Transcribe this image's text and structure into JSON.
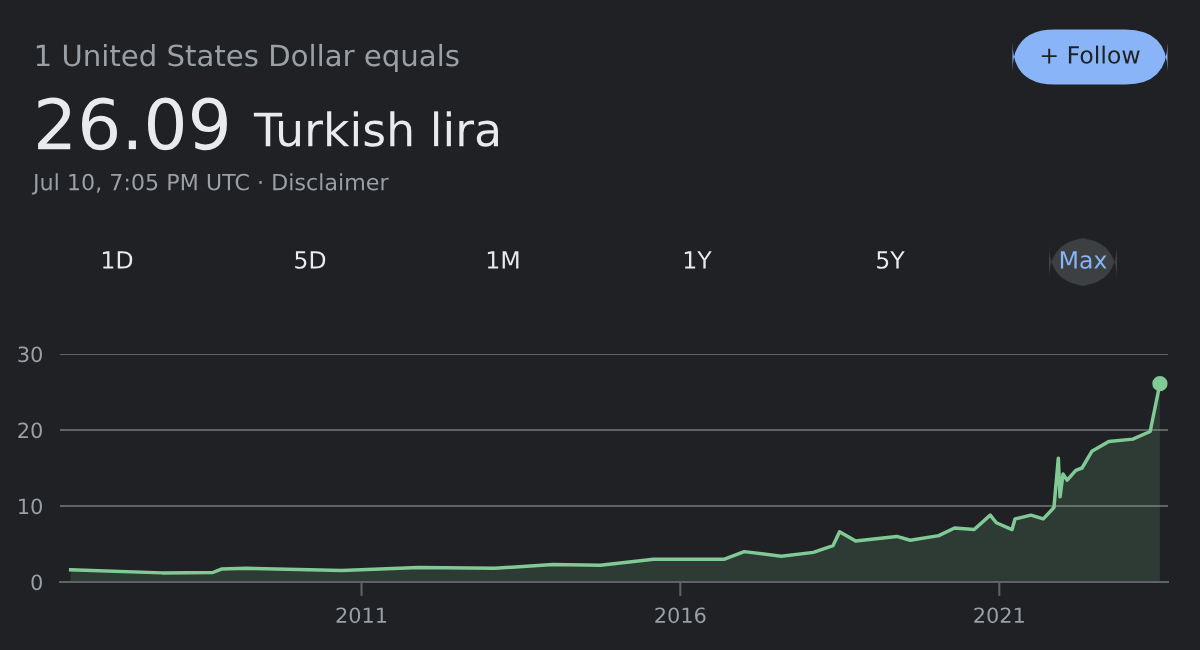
{
  "chart_data": {
    "type": "area",
    "title": "1 United States Dollar equals",
    "annotations": [
      "26.09",
      "Turkish lira",
      "Jul 10, 7:05 PM UTC · Disclaimer",
      "+ Follow",
      "1D",
      "5D",
      "1M",
      "1Y",
      "5Y",
      "Max"
    ],
    "x": [
      "2006-06-10",
      "2007-11-15",
      "2008-09-01",
      "2008-10-20",
      "2009-03-10",
      "2010-09-10",
      "2011-11-25",
      "2013-02-01",
      "2014-01-01",
      "2014-09-30",
      "2015-08-01",
      "2016-09-10",
      "2017-01-01",
      "2017-08-01",
      "2018-02-01",
      "2018-05-25",
      "2018-07-01",
      "2018-10-01",
      "2019-05-25",
      "2019-08-10",
      "2020-01-20",
      "2020-04-20",
      "2020-08-10",
      "2020-11-10",
      "2020-12-15",
      "2021-03-15",
      "2021-04-01",
      "2021-07-01",
      "2021-09-10",
      "2021-11-10",
      "2021-12-05",
      "2021-12-15",
      "2022-01-01",
      "2022-01-25",
      "2022-03-15",
      "2022-04-20",
      "2022-06-15",
      "2022-09-20",
      "2023-02-05",
      "2023-05-15",
      "2023-07-10"
    ],
    "series": [
      {
        "color": "#81c995",
        "values": [
          1.6,
          1.2,
          1.25,
          1.7,
          1.8,
          1.5,
          1.9,
          1.8,
          2.3,
          2.2,
          3.0,
          3.0,
          4.0,
          3.4,
          3.9,
          4.8,
          6.6,
          5.4,
          6.0,
          5.5,
          6.1,
          7.1,
          6.9,
          8.8,
          7.8,
          6.9,
          8.3,
          8.8,
          8.3,
          9.8,
          16.3,
          11.2,
          14.2,
          13.4,
          14.7,
          15.0,
          17.2,
          18.5,
          18.8,
          19.8,
          26.09
        ]
      }
    ],
    "xlim": [
      "2006-04-10",
      "2023-08-25"
    ],
    "xticks": [
      {
        "value": "2011-01-01",
        "label": "2011"
      },
      {
        "value": "2016-01-01",
        "label": "2016"
      },
      {
        "value": "2021-01-01",
        "label": "2021"
      }
    ],
    "ylim": [
      0,
      30
    ],
    "yticks": [
      0,
      10,
      20,
      30
    ],
    "grid": "y"
  }
}
